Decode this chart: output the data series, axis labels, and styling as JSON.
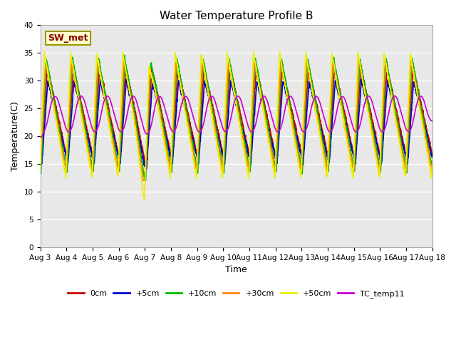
{
  "title": "Water Temperature Profile B",
  "xlabel": "Time",
  "ylabel": "Temperature(C)",
  "ylim": [
    0,
    40
  ],
  "yticks": [
    0,
    5,
    10,
    15,
    20,
    25,
    30,
    35,
    40
  ],
  "date_labels": [
    "Aug 3",
    "Aug 4",
    "Aug 5",
    "Aug 6",
    "Aug 7",
    "Aug 8",
    "Aug 9",
    "Aug 10",
    "Aug 11",
    "Aug 12",
    "Aug 13",
    "Aug 14",
    "Aug 15",
    "Aug 16",
    "Aug 17",
    "Aug 18"
  ],
  "series": {
    "0cm": {
      "color": "#cc0000",
      "lw": 1.2
    },
    "+5cm": {
      "color": "#0000cc",
      "lw": 1.2
    },
    "+10cm": {
      "color": "#00bb00",
      "lw": 1.2
    },
    "+30cm": {
      "color": "#ff8800",
      "lw": 1.2
    },
    "+50cm": {
      "color": "#eeee00",
      "lw": 1.2
    },
    "TC_temp11": {
      "color": "#cc00cc",
      "lw": 1.2
    }
  },
  "annotation_text": "SW_met",
  "annotation_bbox": {
    "facecolor": "#ffffcc",
    "edgecolor": "#999900",
    "linewidth": 1.5
  },
  "annotation_color": "#880000",
  "background_color": "#e8e8e8",
  "fig_background": "#ffffff",
  "grid_color": "#ffffff",
  "grid_lw": 1.0
}
